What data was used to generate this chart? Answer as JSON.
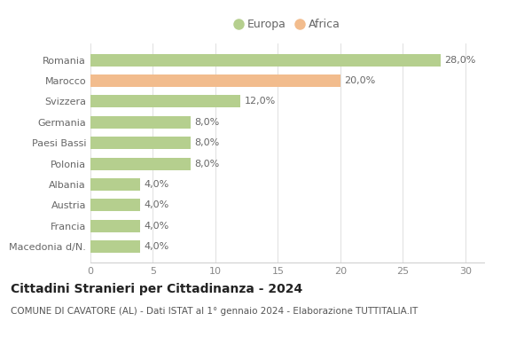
{
  "categories": [
    "Macedonia d/N.",
    "Francia",
    "Austria",
    "Albania",
    "Polonia",
    "Paesi Bassi",
    "Germania",
    "Svizzera",
    "Marocco",
    "Romania"
  ],
  "values": [
    4.0,
    4.0,
    4.0,
    4.0,
    8.0,
    8.0,
    8.0,
    12.0,
    20.0,
    28.0
  ],
  "colors": [
    "#b5cf8e",
    "#b5cf8e",
    "#b5cf8e",
    "#b5cf8e",
    "#b5cf8e",
    "#b5cf8e",
    "#b5cf8e",
    "#b5cf8e",
    "#f2bc8d",
    "#b5cf8e"
  ],
  "label_texts": [
    "4,0%",
    "4,0%",
    "4,0%",
    "4,0%",
    "8,0%",
    "8,0%",
    "8,0%",
    "12,0%",
    "20,0%",
    "28,0%"
  ],
  "xlim": [
    0,
    31.5
  ],
  "xticks": [
    0,
    5,
    10,
    15,
    20,
    25,
    30
  ],
  "legend_europa_color": "#b5cf8e",
  "legend_africa_color": "#f2bc8d",
  "title": "Cittadini Stranieri per Cittadinanza - 2024",
  "subtitle": "COMUNE DI CAVATORE (AL) - Dati ISTAT al 1° gennaio 2024 - Elaborazione TUTTITALIA.IT",
  "background_color": "#ffffff",
  "bar_height": 0.6,
  "title_fontsize": 10,
  "subtitle_fontsize": 7.5,
  "tick_fontsize": 8,
  "label_fontsize": 8,
  "legend_fontsize": 9
}
